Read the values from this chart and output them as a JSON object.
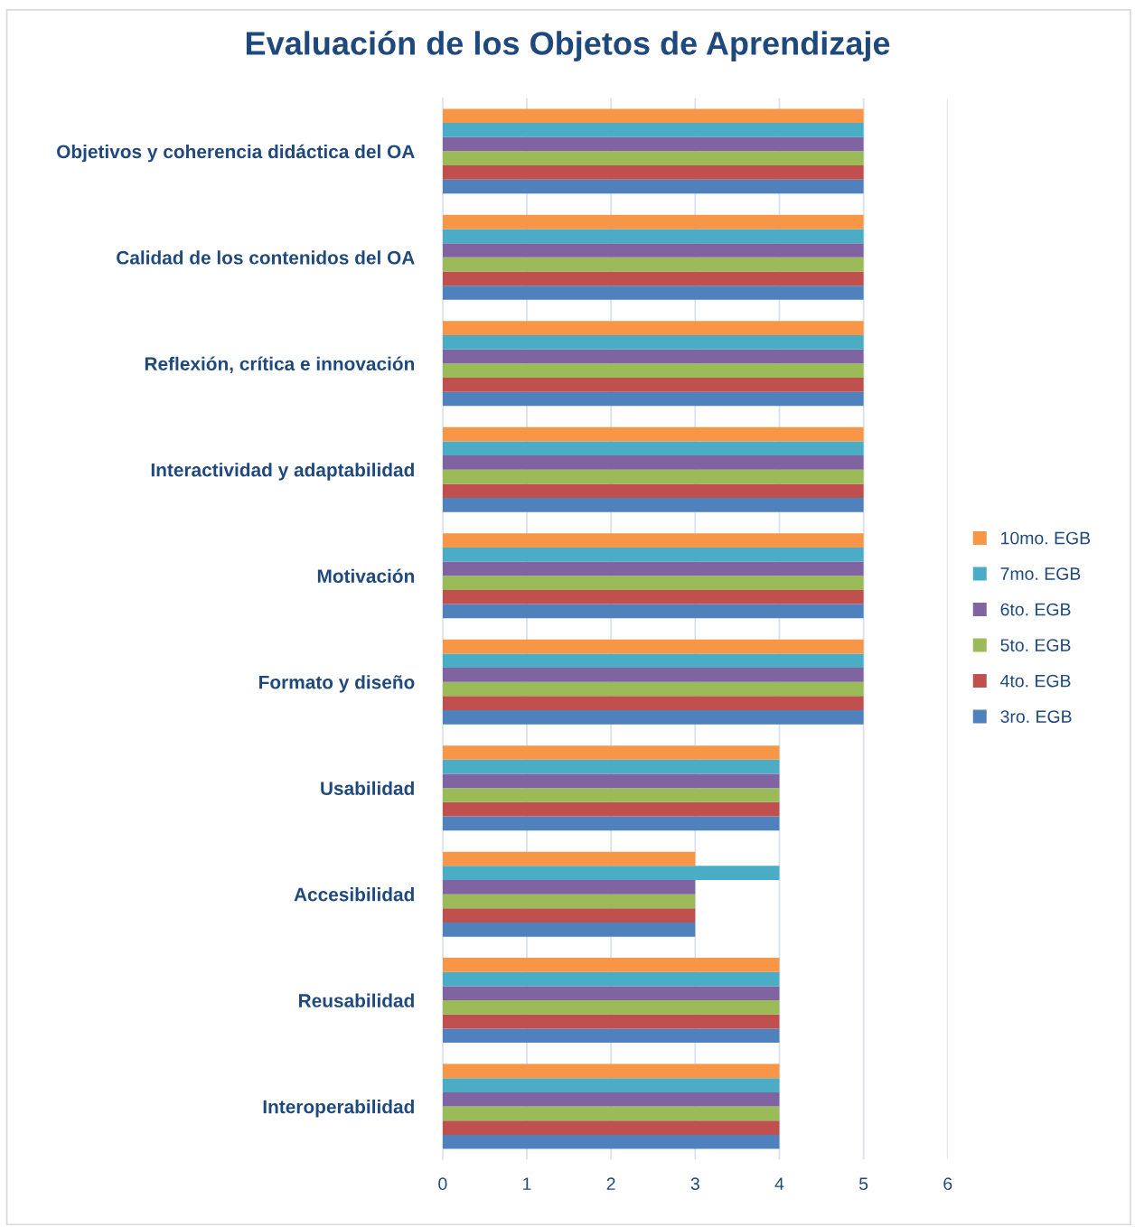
{
  "chart_data": {
    "type": "bar",
    "orientation": "horizontal",
    "title": "Evaluación de los Objetos de Aprendizaje",
    "categories": [
      "Objetivos y coherencia didáctica del OA",
      "Calidad de los contenidos del OA",
      "Reflexión, crítica e innovación",
      "Interactividad y adaptabilidad",
      "Motivación",
      "Formato y diseño",
      "Usabilidad",
      "Accesibilidad",
      "Reusabilidad",
      "Interoperabilidad"
    ],
    "series": [
      {
        "name": "3ro. EGB",
        "color": "#4f81bd",
        "values": [
          5,
          5,
          5,
          5,
          5,
          5,
          4,
          3,
          4,
          4
        ]
      },
      {
        "name": "4to. EGB",
        "color": "#c0504d",
        "values": [
          5,
          5,
          5,
          5,
          5,
          5,
          4,
          3,
          4,
          4
        ]
      },
      {
        "name": "5to. EGB",
        "color": "#9bbb59",
        "values": [
          5,
          5,
          5,
          5,
          5,
          5,
          4,
          3,
          4,
          4
        ]
      },
      {
        "name": "6to. EGB",
        "color": "#8064a2",
        "values": [
          5,
          5,
          5,
          5,
          5,
          5,
          4,
          3,
          4,
          4
        ]
      },
      {
        "name": "7mo. EGB",
        "color": "#4bacc6",
        "values": [
          5,
          5,
          5,
          5,
          5,
          5,
          4,
          4,
          4,
          4
        ]
      },
      {
        "name": "10mo. EGB",
        "color": "#f79646",
        "values": [
          5,
          5,
          5,
          5,
          5,
          5,
          4,
          3,
          4,
          4
        ]
      }
    ],
    "xlim": [
      0,
      6
    ],
    "xticks": [
      0,
      1,
      2,
      3,
      4,
      5,
      6
    ],
    "grid": "x",
    "legend": "right"
  }
}
